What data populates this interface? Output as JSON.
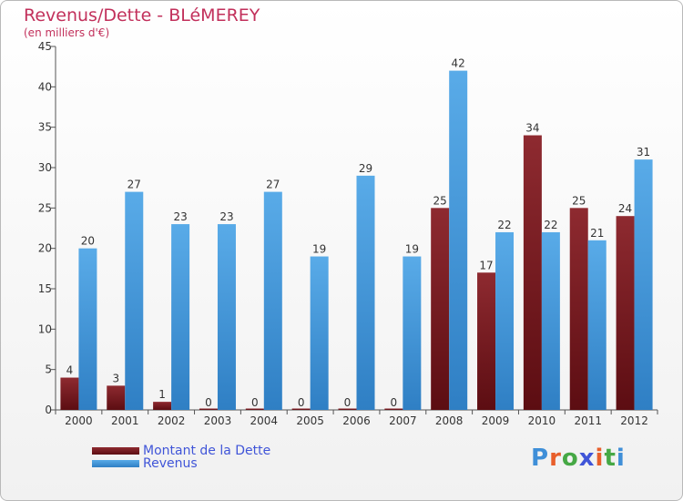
{
  "title": "Revenus/Dette - BLéMEREY",
  "subtitle": "(en milliers d'€)",
  "logo": [
    "P",
    "r",
    "o",
    "x",
    "i",
    "t",
    "i"
  ],
  "colors": {
    "dette": "#7a1a1f",
    "revenus": "#3f96dc",
    "title": "#c2305b",
    "legend_text": "#4055d8",
    "logo": [
      "#3f8fd8",
      "#e85f2b",
      "#46a845",
      "#4055d8",
      "#e85f2b",
      "#46a845",
      "#3f8fd8"
    ]
  },
  "chart_data": {
    "type": "bar",
    "categories": [
      "2000",
      "2001",
      "2002",
      "2003",
      "2004",
      "2005",
      "2006",
      "2007",
      "2008",
      "2009",
      "2010",
      "2011",
      "2012"
    ],
    "series": [
      {
        "name": "Montant de la Dette",
        "values": [
          4,
          3,
          1,
          0,
          0,
          0,
          0,
          0,
          25,
          17,
          34,
          25,
          24
        ]
      },
      {
        "name": "Revenus",
        "values": [
          20,
          27,
          23,
          23,
          27,
          19,
          29,
          19,
          42,
          22,
          22,
          21,
          31
        ]
      }
    ],
    "ylim": [
      0,
      45
    ],
    "yticks": [
      0,
      5,
      10,
      15,
      20,
      25,
      30,
      35,
      40,
      45
    ],
    "legend": "bottom-left",
    "grid": false
  }
}
